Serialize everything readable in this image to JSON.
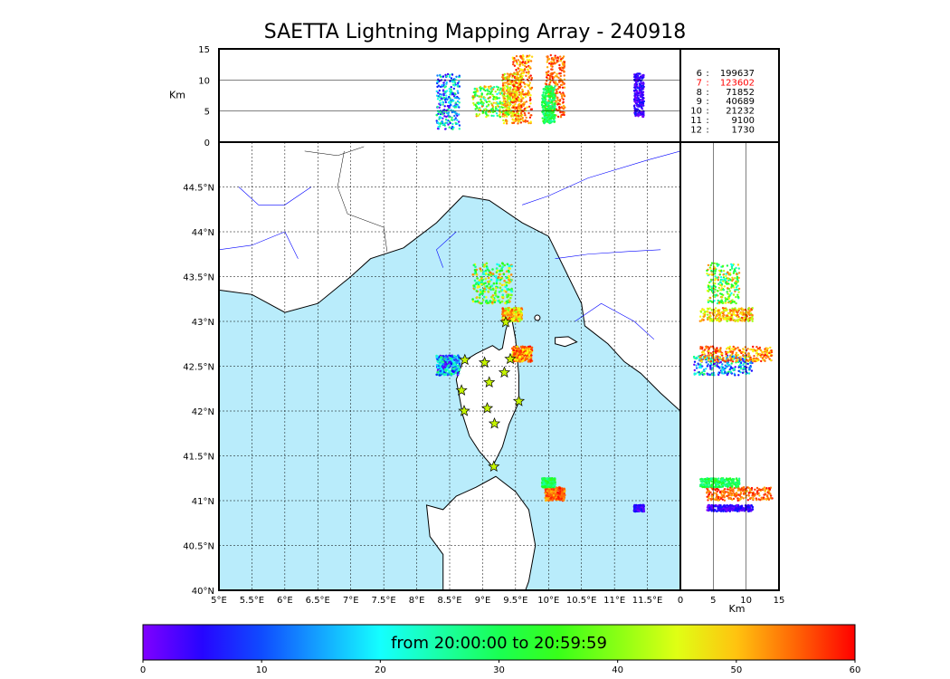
{
  "chart_data": {
    "type": "scatter",
    "title": "SAETTA Lightning Mapping Array - 240918",
    "map": {
      "lon_range": [
        5,
        12
      ],
      "lat_range": [
        40,
        45
      ],
      "lon_ticks": [
        "5°E",
        "5.5°E",
        "6°E",
        "6.5°E",
        "7°E",
        "7.5°E",
        "8°E",
        "8.5°E",
        "9°E",
        "9.5°E",
        "10°E",
        "10.5°E",
        "11°E",
        "11.5°E"
      ],
      "lat_ticks": [
        "40°N",
        "40.5°N",
        "41°N",
        "41.5°N",
        "42°N",
        "42.5°N",
        "43°N",
        "43.5°N",
        "44°N",
        "44.5°N"
      ],
      "gridlines": true,
      "sea_color": "#b9ecfb",
      "land_color": "#ffffff"
    },
    "altitude_panel": {
      "ylabel": "Km",
      "y_range": [
        0,
        15
      ],
      "y_ticks": [
        "0",
        "5",
        "10",
        "15"
      ]
    },
    "side_panel": {
      "xlabel": "Km",
      "x_range": [
        0,
        15
      ],
      "x_ticks": [
        "0",
        "5",
        "10",
        "15"
      ]
    },
    "station_counts": [
      {
        "stations": "6",
        "count": "199637",
        "color": "#000000"
      },
      {
        "stations": "7",
        "count": "123602",
        "color": "#ff0000"
      },
      {
        "stations": "8",
        "count": "71852",
        "color": "#000000"
      },
      {
        "stations": "9",
        "count": "40689",
        "color": "#000000"
      },
      {
        "stations": "10",
        "count": "21232",
        "color": "#000000"
      },
      {
        "stations": "11",
        "count": "9100",
        "color": "#000000"
      },
      {
        "stations": "12",
        "count": "1730",
        "color": "#000000"
      }
    ],
    "stations": [
      {
        "lon": 8.73,
        "lat": 42.57
      },
      {
        "lon": 9.03,
        "lat": 42.54
      },
      {
        "lon": 9.35,
        "lat": 42.99
      },
      {
        "lon": 9.42,
        "lat": 42.58
      },
      {
        "lon": 9.33,
        "lat": 42.43
      },
      {
        "lon": 9.1,
        "lat": 42.32
      },
      {
        "lon": 8.68,
        "lat": 42.23
      },
      {
        "lon": 9.55,
        "lat": 42.11
      },
      {
        "lon": 9.07,
        "lat": 42.03
      },
      {
        "lon": 8.72,
        "lat": 42.0
      },
      {
        "lon": 9.18,
        "lat": 41.86
      },
      {
        "lon": 9.17,
        "lat": 41.38
      }
    ],
    "clusters": [
      {
        "lon": [
          8.85,
          9.45
        ],
        "lat": [
          43.2,
          43.65
        ],
        "t": [
          20,
          55
        ],
        "alt": [
          4,
          9
        ]
      },
      {
        "lon": [
          9.3,
          9.6
        ],
        "lat": [
          43.0,
          43.15
        ],
        "t": [
          40,
          58
        ],
        "alt": [
          3,
          11
        ]
      },
      {
        "lon": [
          8.3,
          8.65
        ],
        "lat": [
          42.4,
          42.62
        ],
        "t": [
          0,
          30
        ],
        "alt": [
          2,
          11
        ]
      },
      {
        "lon": [
          9.45,
          9.75
        ],
        "lat": [
          42.55,
          42.72
        ],
        "t": [
          45,
          60
        ],
        "alt": [
          3,
          14
        ]
      },
      {
        "lon": [
          9.95,
          10.25
        ],
        "lat": [
          41.0,
          41.15
        ],
        "t": [
          50,
          60
        ],
        "alt": [
          4,
          14
        ]
      },
      {
        "lon": [
          9.9,
          10.1
        ],
        "lat": [
          41.15,
          41.25
        ],
        "t": [
          25,
          35
        ],
        "alt": [
          3,
          9
        ]
      },
      {
        "lon": [
          11.3,
          11.45
        ],
        "lat": [
          40.88,
          40.95
        ],
        "t": [
          0,
          8
        ],
        "alt": [
          4,
          11
        ]
      }
    ],
    "colorbar": {
      "label": "from 20:00:00 to 20:59:59",
      "range": [
        0,
        60
      ],
      "ticks": [
        "0",
        "10",
        "20",
        "30",
        "40",
        "50",
        "60"
      ],
      "colormap": "rainbow"
    }
  }
}
